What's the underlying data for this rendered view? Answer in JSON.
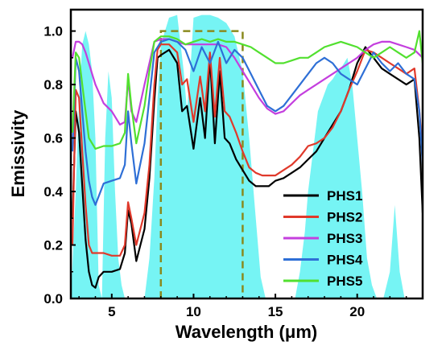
{
  "chart_data": {
    "type": "line",
    "xlabel": "Wavelength (μm)",
    "ylabel": "Emissivity",
    "xlim": [
      2.5,
      24
    ],
    "ylim": [
      0,
      1.08
    ],
    "x_ticks": [
      5,
      10,
      15,
      20
    ],
    "y_ticks": [
      0.0,
      0.2,
      0.4,
      0.6,
      0.8,
      1.0
    ],
    "y_tick_labels": [
      "0.0",
      "0.2",
      "0.4",
      "0.6",
      "0.8",
      "1.0"
    ],
    "legend_position": "bottom-right",
    "atmospheric_window": {
      "x_start": 8,
      "x_end": 13,
      "y": 1.0,
      "style": "dashed",
      "color": "#8a8a1e"
    },
    "transmittance_fill": {
      "color": "#5ef2f2",
      "points": [
        [
          2.5,
          0.0
        ],
        [
          2.8,
          0.4
        ],
        [
          3.0,
          0.75
        ],
        [
          3.2,
          0.95
        ],
        [
          3.4,
          1.0
        ],
        [
          3.6,
          0.95
        ],
        [
          3.8,
          0.85
        ],
        [
          4.0,
          0.6
        ],
        [
          4.2,
          0.05
        ],
        [
          4.4,
          0.0
        ],
        [
          4.6,
          0.6
        ],
        [
          4.8,
          0.85
        ],
        [
          5.0,
          0.75
        ],
        [
          5.2,
          0.4
        ],
        [
          5.4,
          0.15
        ],
        [
          5.6,
          0.05
        ],
        [
          5.8,
          0.0
        ],
        [
          7.0,
          0.0
        ],
        [
          7.3,
          0.15
        ],
        [
          7.6,
          0.45
        ],
        [
          7.8,
          0.75
        ],
        [
          8.0,
          0.95
        ],
        [
          8.5,
          1.05
        ],
        [
          9.0,
          1.06
        ],
        [
          9.4,
          0.85
        ],
        [
          9.6,
          0.7
        ],
        [
          9.8,
          0.85
        ],
        [
          10.0,
          1.05
        ],
        [
          10.5,
          1.06
        ],
        [
          11.0,
          1.06
        ],
        [
          11.5,
          1.05
        ],
        [
          12.0,
          1.03
        ],
        [
          12.5,
          0.98
        ],
        [
          13.0,
          0.85
        ],
        [
          13.4,
          0.6
        ],
        [
          13.8,
          0.3
        ],
        [
          14.1,
          0.08
        ],
        [
          14.4,
          0.0
        ],
        [
          16.2,
          0.0
        ],
        [
          16.5,
          0.1
        ],
        [
          16.8,
          0.25
        ],
        [
          17.0,
          0.4
        ],
        [
          17.3,
          0.55
        ],
        [
          17.6,
          0.7
        ],
        [
          17.9,
          0.75
        ],
        [
          18.2,
          0.8
        ],
        [
          18.5,
          0.82
        ],
        [
          18.8,
          0.85
        ],
        [
          19.1,
          0.87
        ],
        [
          19.4,
          0.9
        ],
        [
          19.7,
          0.8
        ],
        [
          20.0,
          0.6
        ],
        [
          20.3,
          0.4
        ],
        [
          20.6,
          0.15
        ],
        [
          20.9,
          0.05
        ],
        [
          21.2,
          0.0
        ],
        [
          21.6,
          0.0
        ],
        [
          22.0,
          0.1
        ],
        [
          22.3,
          0.35
        ],
        [
          22.6,
          0.1
        ],
        [
          22.9,
          0.0
        ],
        [
          24.0,
          0.0
        ]
      ]
    },
    "series": [
      {
        "name": "PHS1",
        "color": "#000000",
        "x": [
          2.6,
          2.8,
          3.0,
          3.2,
          3.4,
          3.6,
          3.8,
          4.0,
          4.2,
          4.5,
          5.0,
          5.5,
          5.8,
          6.0,
          6.2,
          6.5,
          7.0,
          7.3,
          7.6,
          7.8,
          8.0,
          8.5,
          9.0,
          9.3,
          9.6,
          10.0,
          10.4,
          10.7,
          11.0,
          11.3,
          11.6,
          11.9,
          12.2,
          12.6,
          13.0,
          13.4,
          13.8,
          14.2,
          14.6,
          15.0,
          15.5,
          16.0,
          16.5,
          17.0,
          17.5,
          18.0,
          18.5,
          19.0,
          19.5,
          20.0,
          20.5,
          21.0,
          21.5,
          22.0,
          22.5,
          23.0,
          23.5,
          23.8,
          24.0
        ],
        "y": [
          0.3,
          0.7,
          0.62,
          0.42,
          0.22,
          0.1,
          0.05,
          0.04,
          0.08,
          0.1,
          0.1,
          0.11,
          0.17,
          0.33,
          0.28,
          0.14,
          0.26,
          0.45,
          0.74,
          0.9,
          0.91,
          0.93,
          0.88,
          0.7,
          0.72,
          0.56,
          0.75,
          0.6,
          0.9,
          0.58,
          0.85,
          0.6,
          0.58,
          0.52,
          0.48,
          0.44,
          0.42,
          0.42,
          0.42,
          0.44,
          0.45,
          0.47,
          0.49,
          0.52,
          0.55,
          0.6,
          0.65,
          0.7,
          0.78,
          0.88,
          0.94,
          0.9,
          0.86,
          0.84,
          0.82,
          0.8,
          0.82,
          0.6,
          0.32
        ]
      },
      {
        "name": "PHS2",
        "color": "#e0392b",
        "x": [
          2.6,
          2.8,
          3.0,
          3.2,
          3.4,
          3.6,
          3.8,
          4.0,
          4.5,
          5.0,
          5.5,
          5.8,
          6.0,
          6.2,
          6.5,
          7.0,
          7.3,
          7.6,
          7.8,
          8.0,
          8.5,
          9.0,
          9.3,
          9.6,
          10.0,
          10.4,
          10.7,
          11.0,
          11.3,
          11.6,
          11.9,
          12.2,
          12.6,
          13.0,
          13.4,
          13.8,
          14.2,
          14.6,
          15.0,
          15.5,
          16.0,
          16.5,
          17.0,
          17.5,
          18.0,
          18.5,
          19.0,
          19.5,
          20.0,
          20.5,
          21.0,
          21.5,
          22.0,
          22.5,
          23.0,
          23.5,
          23.8,
          24.0
        ],
        "y": [
          0.2,
          0.78,
          0.75,
          0.55,
          0.35,
          0.2,
          0.17,
          0.17,
          0.17,
          0.16,
          0.16,
          0.2,
          0.36,
          0.3,
          0.2,
          0.32,
          0.5,
          0.8,
          0.93,
          0.95,
          0.95,
          0.92,
          0.8,
          0.82,
          0.66,
          0.83,
          0.7,
          0.92,
          0.68,
          0.9,
          0.7,
          0.68,
          0.62,
          0.55,
          0.49,
          0.47,
          0.46,
          0.46,
          0.46,
          0.48,
          0.5,
          0.53,
          0.57,
          0.58,
          0.6,
          0.64,
          0.7,
          0.78,
          0.85,
          0.93,
          0.92,
          0.9,
          0.88,
          0.86,
          0.84,
          0.86,
          0.7,
          0.55
        ]
      },
      {
        "name": "PHS3",
        "color": "#c43fde",
        "x": [
          2.6,
          2.8,
          3.0,
          3.2,
          3.4,
          3.6,
          3.8,
          4.0,
          4.5,
          5.0,
          5.5,
          5.8,
          6.0,
          6.2,
          6.5,
          7.0,
          7.3,
          7.6,
          8.0,
          8.5,
          9.0,
          9.5,
          10.0,
          10.5,
          11.0,
          11.5,
          12.0,
          12.5,
          13.0,
          13.5,
          14.0,
          14.5,
          15.0,
          15.5,
          16.0,
          16.5,
          17.0,
          17.5,
          18.0,
          18.5,
          19.0,
          19.5,
          20.0,
          20.5,
          21.0,
          21.5,
          22.0,
          22.5,
          23.0,
          23.5,
          24.0
        ],
        "y": [
          0.9,
          0.96,
          0.96,
          0.95,
          0.92,
          0.88,
          0.84,
          0.8,
          0.73,
          0.7,
          0.65,
          0.66,
          0.82,
          0.7,
          0.66,
          0.8,
          0.88,
          0.96,
          0.97,
          0.97,
          0.96,
          0.95,
          0.95,
          0.95,
          0.95,
          0.95,
          0.94,
          0.9,
          0.85,
          0.8,
          0.75,
          0.71,
          0.69,
          0.7,
          0.73,
          0.76,
          0.78,
          0.8,
          0.82,
          0.84,
          0.86,
          0.88,
          0.9,
          0.93,
          0.95,
          0.96,
          0.96,
          0.95,
          0.94,
          0.93,
          0.9
        ]
      },
      {
        "name": "PHS4",
        "color": "#2e6fd6",
        "x": [
          2.6,
          2.8,
          3.0,
          3.2,
          3.4,
          3.6,
          3.8,
          4.0,
          4.5,
          5.0,
          5.5,
          5.8,
          6.0,
          6.2,
          6.5,
          7.0,
          7.3,
          7.6,
          8.0,
          8.5,
          9.0,
          9.5,
          10.0,
          10.5,
          11.0,
          11.5,
          12.0,
          12.5,
          13.0,
          13.5,
          14.0,
          14.5,
          15.0,
          15.5,
          16.0,
          16.5,
          17.0,
          17.5,
          18.0,
          18.5,
          19.0,
          19.5,
          20.0,
          20.5,
          21.0,
          21.5,
          22.0,
          22.5,
          23.0,
          23.5,
          23.8,
          24.0
        ],
        "y": [
          0.55,
          0.9,
          0.85,
          0.7,
          0.55,
          0.44,
          0.38,
          0.35,
          0.43,
          0.44,
          0.45,
          0.5,
          0.7,
          0.58,
          0.43,
          0.58,
          0.75,
          0.92,
          0.96,
          0.97,
          0.96,
          0.93,
          0.85,
          0.94,
          0.88,
          0.96,
          0.88,
          0.93,
          0.9,
          0.84,
          0.78,
          0.72,
          0.7,
          0.72,
          0.76,
          0.8,
          0.84,
          0.88,
          0.9,
          0.88,
          0.84,
          0.82,
          0.8,
          0.86,
          0.92,
          0.88,
          0.85,
          0.88,
          0.84,
          0.82,
          0.7,
          0.5
        ]
      },
      {
        "name": "PHS5",
        "color": "#52e02f",
        "x": [
          2.6,
          2.8,
          3.0,
          3.2,
          3.4,
          3.6,
          3.8,
          4.0,
          4.5,
          5.0,
          5.5,
          5.8,
          6.0,
          6.2,
          6.5,
          7.0,
          7.3,
          7.6,
          8.0,
          8.5,
          9.0,
          9.5,
          10.0,
          10.5,
          11.0,
          11.5,
          12.0,
          12.5,
          13.0,
          13.5,
          14.0,
          14.5,
          15.0,
          15.5,
          16.0,
          16.5,
          17.0,
          17.5,
          18.0,
          18.5,
          19.0,
          19.5,
          20.0,
          20.5,
          21.0,
          21.5,
          22.0,
          22.5,
          23.0,
          23.5,
          23.8,
          24.0
        ],
        "y": [
          0.62,
          0.92,
          0.9,
          0.8,
          0.7,
          0.6,
          0.58,
          0.56,
          0.57,
          0.57,
          0.58,
          0.62,
          0.84,
          0.72,
          0.58,
          0.72,
          0.85,
          0.96,
          0.98,
          0.98,
          0.97,
          0.95,
          0.96,
          0.97,
          0.96,
          0.97,
          0.96,
          0.96,
          0.95,
          0.94,
          0.92,
          0.9,
          0.88,
          0.88,
          0.89,
          0.9,
          0.9,
          0.92,
          0.94,
          0.95,
          0.96,
          0.95,
          0.94,
          0.92,
          0.9,
          0.92,
          0.94,
          0.92,
          0.9,
          0.92,
          1.0,
          0.88
        ]
      }
    ]
  }
}
